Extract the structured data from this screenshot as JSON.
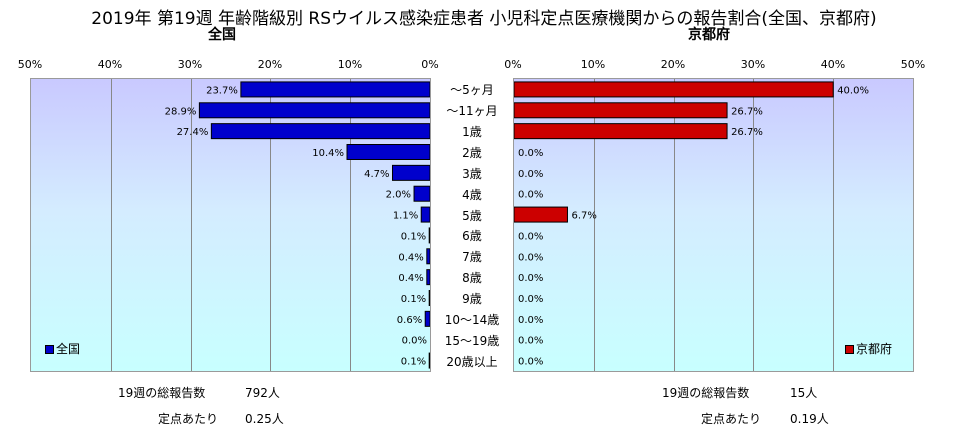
{
  "title": "2019年 第19週 年齢階級別 RSウイルス感染症患者 小児科定点医療機関からの報告割合(全国、京都府)",
  "chart_data": [
    {
      "type": "bar",
      "orientation": "horizontal",
      "title": "全国",
      "xlim": [
        0,
        50
      ],
      "axis_direction": "reversed",
      "tick_labels": [
        "50%",
        "40%",
        "30%",
        "20%",
        "10%",
        "0%"
      ],
      "categories": [
        "～5ヶ月",
        "～11ヶ月",
        "1歳",
        "2歳",
        "3歳",
        "4歳",
        "5歳",
        "6歳",
        "7歳",
        "8歳",
        "9歳",
        "10～14歳",
        "15～19歳",
        "20歳以上"
      ],
      "series": [
        {
          "name": "全国",
          "color": "#0000cc",
          "values": [
            23.7,
            28.9,
            27.4,
            10.4,
            4.7,
            2.0,
            1.1,
            0.1,
            0.4,
            0.4,
            0.1,
            0.6,
            0.0,
            0.1
          ],
          "labels": [
            "23.7%",
            "28.9%",
            "27.4%",
            "10.4%",
            "4.7%",
            "2.0%",
            "1.1%",
            "0.1%",
            "0.4%",
            "0.4%",
            "0.1%",
            "0.6%",
            "0.0%",
            "0.1%"
          ]
        }
      ],
      "legend_position": "bottom-left",
      "grid": true
    },
    {
      "type": "bar",
      "orientation": "horizontal",
      "title": "京都府",
      "xlim": [
        0,
        50
      ],
      "tick_labels": [
        "0%",
        "10%",
        "20%",
        "30%",
        "40%",
        "50%"
      ],
      "categories": [
        "～5ヶ月",
        "～11ヶ月",
        "1歳",
        "2歳",
        "3歳",
        "4歳",
        "5歳",
        "6歳",
        "7歳",
        "8歳",
        "9歳",
        "10～14歳",
        "15～19歳",
        "20歳以上"
      ],
      "series": [
        {
          "name": "京都府",
          "color": "#cc0000",
          "values": [
            40.0,
            26.7,
            26.7,
            0.0,
            0.0,
            0.0,
            6.7,
            0.0,
            0.0,
            0.0,
            0.0,
            0.0,
            0.0,
            0.0
          ],
          "labels": [
            "40.0%",
            "26.7%",
            "26.7%",
            "0.0%",
            "0.0%",
            "0.0%",
            "6.7%",
            "0.0%",
            "0.0%",
            "0.0%",
            "0.0%",
            "0.0%",
            "0.0%",
            "0.0%"
          ]
        }
      ],
      "legend_position": "bottom-right",
      "grid": true
    }
  ],
  "footer": {
    "national_total_label": "19週の総報告数",
    "national_total_value": "792人",
    "national_per_label": "定点あたり",
    "national_per_value": "0.25人",
    "kyoto_total_label": "19週の総報告数",
    "kyoto_total_value": "15人",
    "kyoto_per_label": "定点あたり",
    "kyoto_per_value": "0.19人"
  }
}
